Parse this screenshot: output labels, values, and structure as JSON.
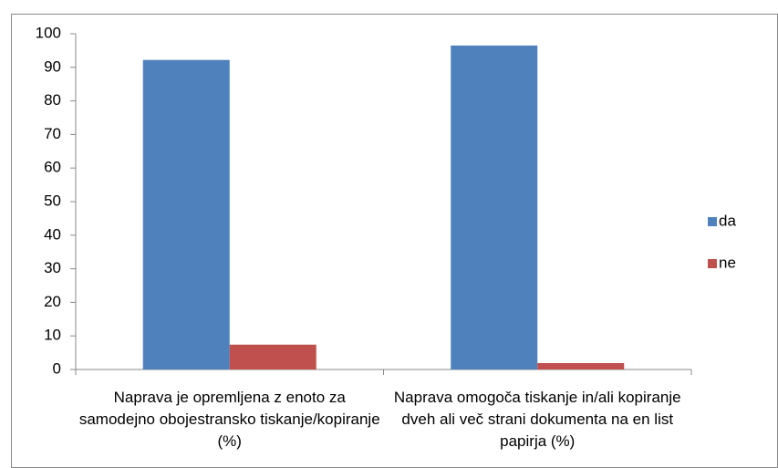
{
  "chart_data": {
    "type": "bar",
    "categories": [
      "Naprava je opremljena z enoto za samodejno obojestransko tiskanje/kopiranje (%)",
      "Naprava omogoča tiskanje in/ali kopiranje dveh ali več strani dokumenta na en list papirja (%)"
    ],
    "series": [
      {
        "name": "da",
        "color": "#4f81bd",
        "values": [
          92.2,
          96.5
        ]
      },
      {
        "name": "ne",
        "color": "#c0504d",
        "values": [
          7.4,
          1.9
        ]
      }
    ],
    "ylim": [
      0,
      100
    ],
    "yticks": [
      0,
      10,
      20,
      30,
      40,
      50,
      60,
      70,
      80,
      90,
      100
    ],
    "grid": false,
    "legend": "right"
  }
}
